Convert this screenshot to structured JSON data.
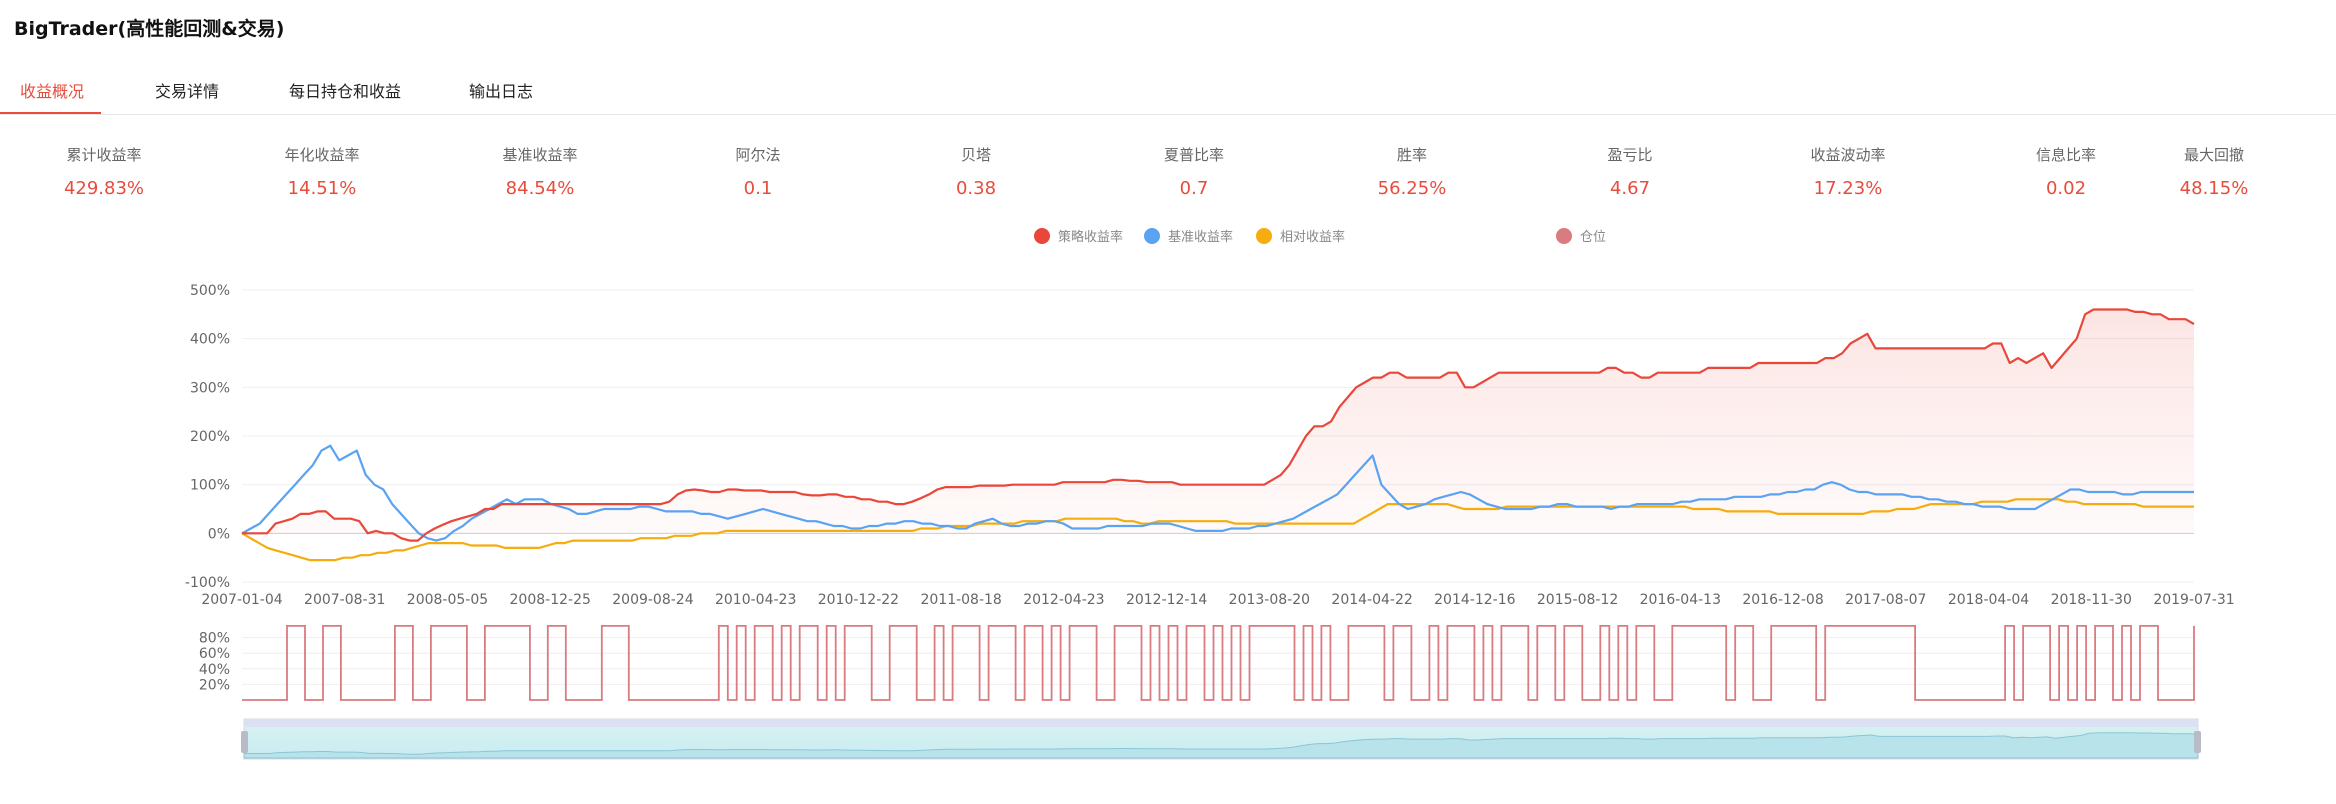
{
  "app": {
    "title": "BigTrader(高性能回测&交易)"
  },
  "tabs": [
    {
      "label": "收益概况",
      "active": true
    },
    {
      "label": "交易详情",
      "active": false
    },
    {
      "label": "每日持仓和收益",
      "active": false
    },
    {
      "label": "输出日志",
      "active": false
    }
  ],
  "metrics": [
    {
      "label": "累计收益率",
      "value": "429.83%"
    },
    {
      "label": "年化收益率",
      "value": "14.51%"
    },
    {
      "label": "基准收益率",
      "value": "84.54%"
    },
    {
      "label": "阿尔法",
      "value": "0.1"
    },
    {
      "label": "贝塔",
      "value": "0.38"
    },
    {
      "label": "夏普比率",
      "value": "0.7"
    },
    {
      "label": "胜率",
      "value": "56.25%"
    },
    {
      "label": "盈亏比",
      "value": "4.67"
    },
    {
      "label": "收益波动率",
      "value": "17.23%"
    },
    {
      "label": "信息比率",
      "value": "0.02"
    },
    {
      "label": "最大回撤",
      "value": "48.15%"
    }
  ],
  "colors": {
    "strategy": "#e8473a",
    "benchmark": "#5aa2f2",
    "relative": "#f5ac0f",
    "position": "#d97b7f",
    "accent": "#e84c3d"
  },
  "chart_data": [
    {
      "type": "line",
      "legend": [
        {
          "name": "策略收益率",
          "color": "#e8473a"
        },
        {
          "name": "基准收益率",
          "color": "#5aa2f2"
        },
        {
          "name": "相对收益率",
          "color": "#f5ac0f"
        },
        {
          "name": "仓位",
          "color": "#d97b7f"
        }
      ],
      "legend_position": "top-center",
      "x_ticks": [
        "2007-01-04",
        "2007-08-31",
        "2008-05-05",
        "2008-12-25",
        "2009-08-24",
        "2010-04-23",
        "2010-12-22",
        "2011-08-18",
        "2012-04-23",
        "2012-12-14",
        "2013-08-20",
        "2014-04-22",
        "2014-12-16",
        "2015-08-12",
        "2016-04-13",
        "2016-12-08",
        "2017-08-07",
        "2018-04-04",
        "2018-11-30",
        "2019-07-31"
      ],
      "y_ticks": [
        "500%",
        "400%",
        "300%",
        "200%",
        "100%",
        "0%",
        "-100%"
      ],
      "ylim": [
        -100,
        500
      ],
      "grid": true,
      "series": [
        {
          "name": "策略收益率",
          "color": "#e8473a",
          "area": true,
          "values": [
            0,
            0,
            0,
            0,
            20,
            25,
            30,
            40,
            40,
            45,
            45,
            30,
            30,
            30,
            25,
            0,
            5,
            0,
            0,
            -10,
            -15,
            -15,
            0,
            10,
            18,
            25,
            30,
            35,
            40,
            50,
            50,
            60,
            60,
            60,
            60,
            60,
            60,
            60,
            60,
            60,
            60,
            60,
            60,
            60,
            60,
            60,
            60,
            60,
            60,
            60,
            60,
            65,
            80,
            88,
            90,
            88,
            85,
            85,
            90,
            90,
            88,
            88,
            88,
            85,
            85,
            85,
            85,
            80,
            78,
            78,
            80,
            80,
            75,
            75,
            70,
            70,
            65,
            65,
            60,
            60,
            65,
            72,
            80,
            90,
            95,
            95,
            95,
            95,
            98,
            98,
            98,
            98,
            100,
            100,
            100,
            100,
            100,
            100,
            105,
            105,
            105,
            105,
            105,
            105,
            110,
            110,
            108,
            108,
            105,
            105,
            105,
            105,
            100,
            100,
            100,
            100,
            100,
            100,
            100,
            100,
            100,
            100,
            100,
            110,
            120,
            140,
            170,
            200,
            220,
            220,
            230,
            260,
            280,
            300,
            310,
            320,
            320,
            330,
            330,
            320,
            320,
            320,
            320,
            320,
            330,
            330,
            300,
            300,
            310,
            320,
            330,
            330,
            330,
            330,
            330,
            330,
            330,
            330,
            330,
            330,
            330,
            330,
            330,
            340,
            340,
            330,
            330,
            320,
            320,
            330,
            330,
            330,
            330,
            330,
            330,
            340,
            340,
            340,
            340,
            340,
            340,
            350,
            350,
            350,
            350,
            350,
            350,
            350,
            350,
            360,
            360,
            370,
            390,
            400,
            410,
            380,
            380,
            380,
            380,
            380,
            380,
            380,
            380,
            380,
            380,
            380,
            380,
            380,
            380,
            390,
            390,
            350,
            360,
            350,
            360,
            370,
            340,
            360,
            380,
            400,
            450,
            460,
            460,
            460,
            460,
            460,
            455,
            455,
            450,
            450,
            440,
            440,
            440,
            430
          ]
        },
        {
          "name": "基准收益率",
          "color": "#5aa2f2",
          "values": [
            0,
            10,
            20,
            40,
            60,
            80,
            100,
            120,
            140,
            170,
            180,
            150,
            160,
            170,
            120,
            100,
            90,
            60,
            40,
            20,
            0,
            -10,
            -15,
            -10,
            5,
            15,
            30,
            40,
            50,
            60,
            70,
            60,
            70,
            70,
            70,
            60,
            55,
            50,
            40,
            40,
            45,
            50,
            50,
            50,
            50,
            55,
            55,
            50,
            45,
            45,
            45,
            45,
            40,
            40,
            35,
            30,
            35,
            40,
            45,
            50,
            45,
            40,
            35,
            30,
            25,
            25,
            20,
            15,
            15,
            10,
            10,
            15,
            15,
            20,
            20,
            25,
            25,
            20,
            20,
            15,
            15,
            10,
            10,
            20,
            25,
            30,
            20,
            15,
            15,
            20,
            20,
            25,
            25,
            20,
            10,
            10,
            10,
            10,
            15,
            15,
            15,
            15,
            15,
            20,
            20,
            20,
            15,
            10,
            5,
            5,
            5,
            5,
            10,
            10,
            10,
            15,
            15,
            20,
            25,
            30,
            40,
            50,
            60,
            70,
            80,
            100,
            120,
            140,
            160,
            100,
            80,
            60,
            50,
            55,
            60,
            70,
            75,
            80,
            85,
            80,
            70,
            60,
            55,
            50,
            50,
            50,
            50,
            55,
            55,
            60,
            60,
            55,
            55,
            55,
            55,
            50,
            55,
            55,
            60,
            60,
            60,
            60,
            60,
            65,
            65,
            70,
            70,
            70,
            70,
            75,
            75,
            75,
            75,
            80,
            80,
            85,
            85,
            90,
            90,
            100,
            105,
            100,
            90,
            85,
            85,
            80,
            80,
            80,
            80,
            75,
            75,
            70,
            70,
            65,
            65,
            60,
            60,
            55,
            55,
            55,
            50,
            50,
            50,
            50,
            60,
            70,
            80,
            90,
            90,
            85,
            85,
            85,
            85,
            80,
            80,
            85,
            85,
            85,
            85,
            85,
            85,
            85
          ]
        },
        {
          "name": "相对收益率",
          "color": "#f5ac0f",
          "values": [
            0,
            -10,
            -20,
            -30,
            -35,
            -40,
            -45,
            -50,
            -55,
            -55,
            -55,
            -55,
            -50,
            -50,
            -45,
            -45,
            -40,
            -40,
            -35,
            -35,
            -30,
            -25,
            -20,
            -20,
            -20,
            -20,
            -20,
            -25,
            -25,
            -25,
            -25,
            -30,
            -30,
            -30,
            -30,
            -30,
            -25,
            -20,
            -20,
            -15,
            -15,
            -15,
            -15,
            -15,
            -15,
            -15,
            -15,
            -10,
            -10,
            -10,
            -10,
            -5,
            -5,
            -5,
            0,
            0,
            0,
            5,
            5,
            5,
            5,
            5,
            5,
            5,
            5,
            5,
            5,
            5,
            5,
            5,
            5,
            5,
            5,
            5,
            5,
            5,
            5,
            5,
            5,
            5,
            10,
            10,
            10,
            15,
            15,
            15,
            15,
            20,
            20,
            20,
            20,
            20,
            25,
            25,
            25,
            25,
            25,
            30,
            30,
            30,
            30,
            30,
            30,
            30,
            25,
            25,
            20,
            20,
            25,
            25,
            25,
            25,
            25,
            25,
            25,
            25,
            25,
            20,
            20,
            20,
            20,
            20,
            20,
            20,
            20,
            20,
            20,
            20,
            20,
            20,
            20,
            20,
            30,
            40,
            50,
            60,
            60,
            60,
            60,
            60,
            60,
            60,
            60,
            55,
            50,
            50,
            50,
            50,
            50,
            55,
            55,
            55,
            55,
            55,
            55,
            55,
            55,
            55,
            55,
            55,
            55,
            55,
            55,
            55,
            55,
            55,
            55,
            55,
            55,
            55,
            55,
            50,
            50,
            50,
            50,
            45,
            45,
            45,
            45,
            45,
            45,
            40,
            40,
            40,
            40,
            40,
            40,
            40,
            40,
            40,
            40,
            40,
            45,
            45,
            45,
            50,
            50,
            50,
            55,
            60,
            60,
            60,
            60,
            60,
            60,
            65,
            65,
            65,
            65,
            70,
            70,
            70,
            70,
            70,
            70,
            65,
            65,
            60,
            60,
            60,
            60,
            60,
            60,
            60,
            55,
            55,
            55,
            55,
            55,
            55,
            55
          ]
        }
      ]
    },
    {
      "type": "line",
      "series_name": "仓位",
      "y_ticks": [
        "80%",
        "60%",
        "40%",
        "20%"
      ],
      "ylim": [
        0,
        100
      ],
      "values": [
        0,
        0,
        0,
        0,
        0,
        95,
        95,
        0,
        0,
        95,
        95,
        0,
        0,
        0,
        0,
        0,
        0,
        95,
        95,
        0,
        0,
        95,
        95,
        95,
        95,
        0,
        0,
        95,
        95,
        95,
        95,
        95,
        0,
        0,
        95,
        95,
        0,
        0,
        0,
        0,
        95,
        95,
        95,
        0,
        0,
        0,
        0,
        0,
        0,
        0,
        0,
        0,
        0,
        95,
        0,
        95,
        0,
        95,
        95,
        0,
        95,
        0,
        95,
        95,
        0,
        95,
        0,
        95,
        95,
        95,
        0,
        0,
        95,
        95,
        95,
        0,
        0,
        95,
        0,
        95,
        95,
        95,
        0,
        95,
        95,
        95,
        0,
        95,
        95,
        0,
        95,
        0,
        95,
        95,
        95,
        0,
        0,
        95,
        95,
        95,
        0,
        95,
        0,
        95,
        0,
        95,
        95,
        0,
        95,
        0,
        95,
        0,
        95,
        95,
        95,
        95,
        95,
        0,
        95,
        0,
        95,
        0,
        0,
        95,
        95,
        95,
        95,
        0,
        95,
        95,
        0,
        0,
        95,
        0,
        95,
        95,
        95,
        0,
        95,
        0,
        95,
        95,
        95,
        0,
        95,
        95,
        0,
        95,
        95,
        0,
        0,
        95,
        0,
        95,
        0,
        95,
        95,
        0,
        0,
        95,
        95,
        95,
        95,
        95,
        95,
        0,
        95,
        95,
        0,
        0,
        95,
        95,
        95,
        95,
        95,
        0,
        95,
        95,
        95,
        95,
        95,
        95,
        95,
        95,
        95,
        95,
        0,
        0,
        0,
        0,
        0,
        0,
        0,
        0,
        0,
        0,
        95,
        0,
        95,
        95,
        95,
        0,
        95,
        0,
        95,
        0,
        95,
        95,
        0,
        95,
        0,
        95,
        95,
        0,
        0,
        0,
        0,
        95
      ]
    }
  ]
}
